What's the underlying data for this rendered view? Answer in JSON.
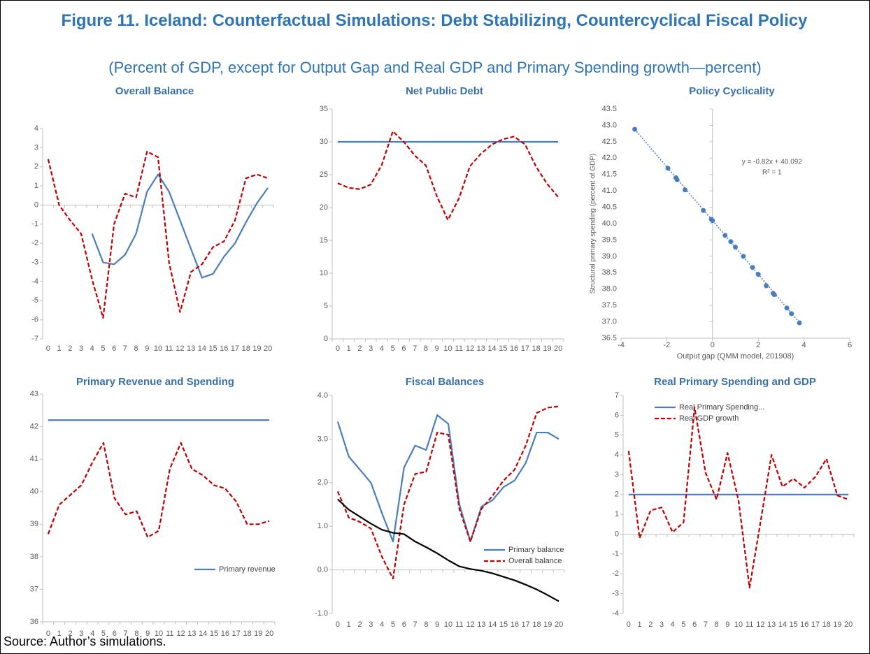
{
  "title": "Figure 11. Iceland: Counterfactual Simulations: Debt Stabilizing, Countercyclical Fiscal Policy",
  "subtitle": "(Percent of GDP, except for Output Gap and Real GDP and Primary Spending growth—percent)",
  "source": "Source: Author’s simulations.",
  "chart_data": [
    {
      "type": "line",
      "title": "Overall Balance",
      "categories": [
        0,
        1,
        2,
        3,
        4,
        5,
        6,
        7,
        8,
        9,
        10,
        11,
        12,
        13,
        14,
        15,
        16,
        17,
        18,
        19,
        20
      ],
      "ylim": [
        -7,
        4
      ],
      "yticks": [
        -7,
        -6,
        -5,
        -4,
        -3,
        -2,
        -1,
        0,
        1,
        2,
        3,
        4
      ],
      "series": [
        {
          "color": "#4a7ebb",
          "line_style": "solid",
          "values": [
            null,
            null,
            null,
            null,
            -1.5,
            -3.0,
            -3.1,
            -2.6,
            -1.5,
            0.7,
            1.6,
            0.7,
            -0.8,
            -2.3,
            -3.8,
            -3.6,
            -2.7,
            -2.0,
            -0.9,
            0.1,
            0.9
          ]
        },
        {
          "color": "#c00000",
          "line_style": "dashed",
          "values": [
            2.4,
            0.0,
            -0.8,
            -1.5,
            -3.9,
            -5.9,
            -1.0,
            0.6,
            0.4,
            2.8,
            2.5,
            -3.0,
            -5.6,
            -3.5,
            -3.1,
            -2.2,
            -1.9,
            -0.8,
            1.4,
            1.6,
            1.4
          ]
        }
      ]
    },
    {
      "type": "line",
      "title": "Net Public Debt",
      "categories": [
        0,
        1,
        2,
        3,
        4,
        5,
        6,
        7,
        8,
        9,
        10,
        11,
        12,
        13,
        14,
        15,
        16,
        17,
        18,
        19,
        20
      ],
      "ylim": [
        0,
        35
      ],
      "yticks": [
        0,
        5,
        10,
        15,
        20,
        25,
        30,
        35
      ],
      "series": [
        {
          "color": "#4a7ebb",
          "line_style": "solid",
          "values": [
            30,
            30,
            30,
            30,
            30,
            30,
            30,
            30,
            30,
            30,
            30,
            30,
            30,
            30,
            30,
            30,
            30,
            30,
            30,
            30,
            30
          ]
        },
        {
          "color": "#c00000",
          "line_style": "dashed",
          "values": [
            23.7,
            23.0,
            22.8,
            23.5,
            26.5,
            31.6,
            30.0,
            27.9,
            26.4,
            21.7,
            18.1,
            21.4,
            26.3,
            28.2,
            29.6,
            30.4,
            30.8,
            29.6,
            26.2,
            23.6,
            21.6
          ]
        }
      ]
    },
    {
      "type": "scatter",
      "title": "Policy Cyclicality",
      "x": [
        -3.4,
        -1.95,
        -1.6,
        -1.55,
        -1.2,
        -0.4,
        -0.05,
        0.0,
        0.55,
        0.8,
        1.0,
        1.35,
        1.75,
        2.0,
        2.35,
        2.65,
        2.7,
        3.25,
        3.45,
        3.8
      ],
      "y": [
        42.88,
        41.69,
        41.4,
        41.34,
        41.03,
        40.4,
        40.13,
        40.09,
        39.64,
        39.45,
        39.28,
        39.0,
        38.66,
        38.45,
        38.1,
        37.87,
        37.83,
        37.42,
        37.25,
        36.97
      ],
      "color": "#4a7ebb",
      "xlim": [
        -4,
        6
      ],
      "xticks": [
        -4,
        -2,
        0,
        2,
        4,
        6
      ],
      "ylim": [
        36.5,
        43.5
      ],
      "yticks": [
        36.5,
        {
          "value": 37,
          "label": "37.0"
        },
        37.5,
        {
          "value": 38,
          "label": "38.0"
        },
        38.5,
        {
          "value": 39,
          "label": "39.0"
        },
        39.5,
        {
          "value": 40,
          "label": "40.0"
        },
        40.5,
        {
          "value": 41,
          "label": "41.0"
        },
        41.5,
        {
          "value": 42,
          "label": "42.0"
        },
        42.5,
        {
          "value": 43,
          "label": "43.0"
        },
        43.5
      ],
      "xlabel": "Output gap (QMM model, 201908)",
      "ylabel": "Structural primary spending (percent of GDP)",
      "trendline": {
        "slope": -0.82,
        "intercept": 40.092,
        "equation": "y = -0.82x + 40.092",
        "r_squared": "R² = 1"
      }
    },
    {
      "type": "line",
      "title": "Primary Revenue and Spending",
      "legend": "lower right",
      "categories": [
        0,
        1,
        2,
        3,
        4,
        5,
        6,
        7,
        8,
        9,
        10,
        11,
        12,
        13,
        14,
        15,
        16,
        17,
        18,
        19,
        20
      ],
      "ylim": [
        36,
        43
      ],
      "yticks": [
        36,
        37,
        38,
        39,
        40,
        41,
        42,
        43
      ],
      "series": [
        {
          "name": "Primary revenue",
          "color": "#4a7ebb",
          "line_style": "solid",
          "values": [
            42.2,
            42.2,
            42.2,
            42.2,
            42.2,
            42.2,
            42.2,
            42.2,
            42.2,
            42.2,
            42.2,
            42.2,
            42.2,
            42.2,
            42.2,
            42.2,
            42.2,
            42.2,
            42.2,
            42.2,
            42.2
          ]
        },
        {
          "color": "#c00000",
          "line_style": "dashed",
          "values": [
            38.7,
            39.6,
            39.9,
            40.2,
            40.9,
            41.5,
            39.8,
            39.3,
            39.4,
            38.6,
            38.8,
            40.7,
            41.5,
            40.7,
            40.5,
            40.2,
            40.1,
            39.7,
            39.0,
            39.0,
            39.1
          ]
        }
      ]
    },
    {
      "type": "line",
      "title": "Fiscal Balances",
      "legend": "lower right",
      "categories": [
        0,
        1,
        2,
        3,
        4,
        5,
        6,
        7,
        8,
        9,
        10,
        11,
        12,
        13,
        14,
        15,
        16,
        17,
        18,
        19,
        20
      ],
      "ylim": [
        -1,
        4
      ],
      "yticks": [
        {
          "value": -1,
          "label": "-1.0"
        },
        {
          "value": 0,
          "label": "0.0"
        },
        {
          "value": 1,
          "label": "1.0"
        },
        {
          "value": 2,
          "label": "2.0"
        },
        {
          "value": 3,
          "label": "3.0"
        },
        {
          "value": 4,
          "label": "4.0"
        }
      ],
      "series": [
        {
          "name": "Primary balance",
          "color": "#4a7ebb",
          "line_style": "solid",
          "values": [
            3.4,
            2.6,
            2.3,
            2.0,
            1.3,
            0.65,
            2.35,
            2.85,
            2.75,
            3.55,
            3.35,
            1.5,
            0.65,
            1.45,
            1.6,
            1.9,
            2.05,
            2.45,
            3.15,
            3.15,
            3.0
          ]
        },
        {
          "name": "Overall balance",
          "color": "#c00000",
          "line_style": "dashed",
          "values": [
            1.8,
            1.2,
            1.1,
            0.95,
            0.3,
            -0.2,
            1.5,
            2.2,
            2.25,
            3.15,
            3.1,
            1.4,
            0.65,
            1.4,
            1.7,
            2.05,
            2.3,
            2.85,
            3.6,
            3.72,
            3.75
          ]
        },
        {
          "color": "#000000",
          "line_style": "solid",
          "values": [
            1.62,
            1.38,
            1.22,
            1.06,
            0.92,
            0.85,
            0.82,
            0.65,
            0.52,
            0.38,
            0.22,
            0.08,
            0.02,
            -0.02,
            -0.08,
            -0.16,
            -0.24,
            -0.34,
            -0.45,
            -0.58,
            -0.72
          ]
        }
      ]
    },
    {
      "type": "line",
      "title": "Real Primary Spending and GDP",
      "legend": "upper left",
      "categories": [
        0,
        1,
        2,
        3,
        4,
        5,
        6,
        7,
        8,
        9,
        10,
        11,
        12,
        13,
        14,
        15,
        16,
        17,
        18,
        19,
        20
      ],
      "ylim": [
        -4,
        7
      ],
      "yticks": [
        -4,
        -3,
        -2,
        -1,
        0,
        1,
        2,
        3,
        4,
        5,
        6,
        7
      ],
      "series": [
        {
          "name": "Real Primary Spending...",
          "color": "#4a7ebb",
          "line_style": "solid",
          "values": [
            2,
            2,
            2,
            2,
            2,
            2,
            2,
            2,
            2,
            2,
            2,
            2,
            2,
            2,
            2,
            2,
            2,
            2,
            2,
            2,
            2
          ]
        },
        {
          "name": "Real GDP growth",
          "color": "#c00000",
          "line_style": "dashed",
          "values": [
            4.2,
            -0.2,
            1.2,
            1.35,
            0.1,
            0.6,
            6.4,
            3.1,
            1.75,
            4.1,
            1.7,
            -2.7,
            0.6,
            4.0,
            2.4,
            2.8,
            2.35,
            2.9,
            3.8,
            1.95,
            1.75
          ]
        }
      ]
    }
  ]
}
